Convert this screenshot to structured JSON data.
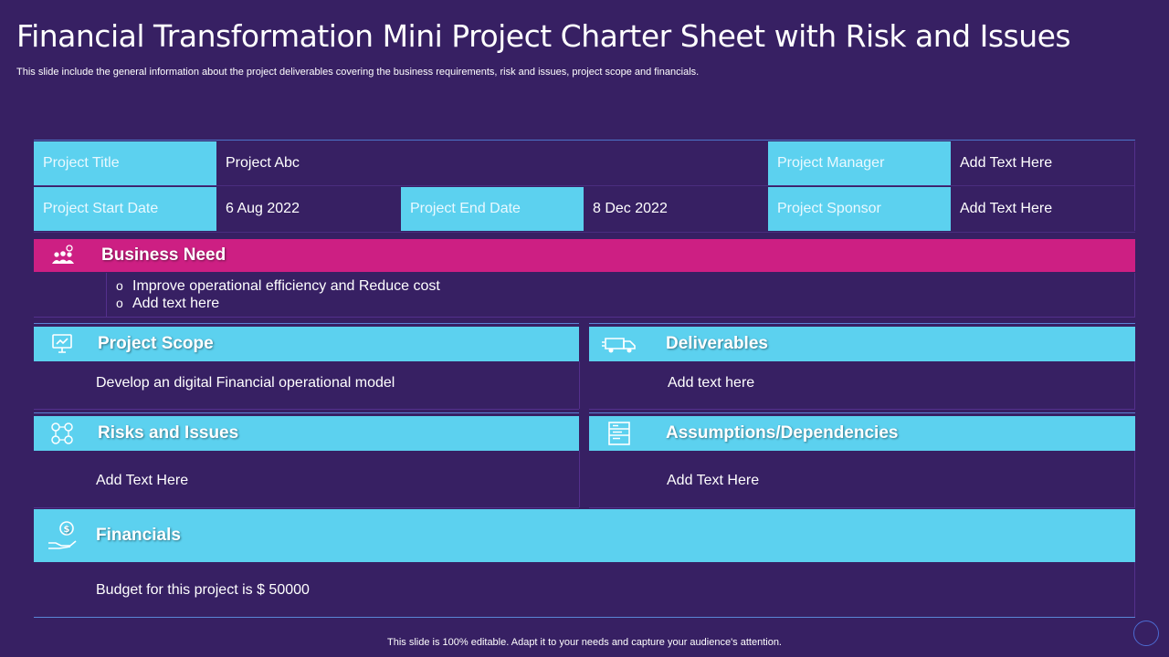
{
  "title": "Financial Transformation Mini Project Charter Sheet with Risk and Issues",
  "subtitle": "This slide include the general information about the project deliverables covering the business requirements, risk and issues, project  scope and financials.",
  "header_table": {
    "project_title_label": "Project Title",
    "project_title_value": "Project Abc",
    "project_manager_label": "Project Manager",
    "project_manager_value": "Add Text Here",
    "start_date_label": "Project Start Date",
    "start_date_value": "6 Aug 2022",
    "end_date_label": "Project End Date",
    "end_date_value": "8 Dec 2022",
    "sponsor_label": "Project Sponsor",
    "sponsor_value": "Add Text Here"
  },
  "business_need": {
    "heading": "Business Need",
    "icon": "people-icon",
    "bullets": [
      "Improve operational efficiency and Reduce cost",
      "Add text here"
    ],
    "bullet_marker": "o"
  },
  "project_scope": {
    "heading": "Project Scope",
    "icon": "monitor-chart-icon",
    "text": "Develop an digital Financial operational model"
  },
  "deliverables": {
    "heading": "Deliverables",
    "icon": "delivery-truck-icon",
    "text": "Add text here"
  },
  "risks": {
    "heading": "Risks and Issues",
    "icon": "risk-nodes-icon",
    "text": "Add Text Here"
  },
  "assumptions": {
    "heading": "Assumptions/Dependencies",
    "icon": "document-list-icon",
    "text": "Add Text  Here"
  },
  "financials": {
    "heading": "Financials",
    "icon": "hand-coin-icon",
    "text": "Budget for this project is $ 50000"
  },
  "footer": "This slide is 100% editable. Adapt it to your needs and capture your audience's attention.",
  "colors": {
    "background": "#372063",
    "cyan": "#5cd1ef",
    "pink": "#cd1f83"
  }
}
